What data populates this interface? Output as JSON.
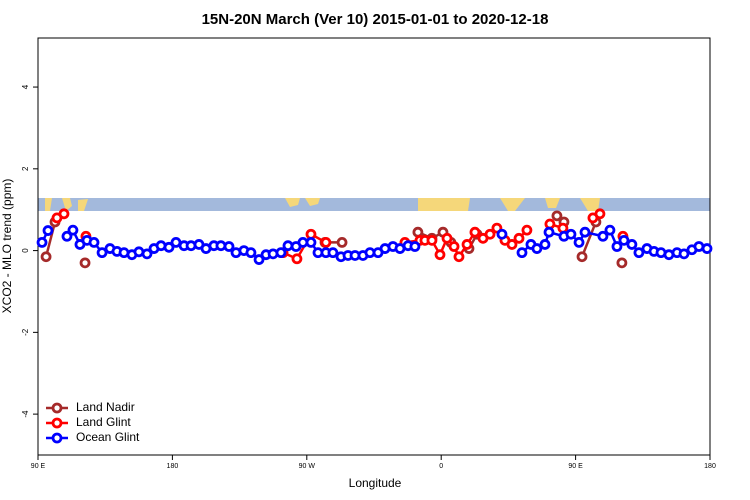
{
  "chart_data": {
    "type": "line",
    "title": "15N-20N March (Ver 10)   2015-01-01 to 2020-12-18",
    "x_label": "Longitude",
    "y_label": "XCO2 - MLO trend (ppm)",
    "xlim": [
      90,
      540
    ],
    "xticks": [
      {
        "value": 90,
        "label": "90 E"
      },
      180,
      {
        "value": 270,
        "label": "90 W"
      },
      {
        "value": 360,
        "label": "0"
      },
      {
        "value": 450,
        "label": "90 E"
      },
      {
        "value": 540,
        "label": "180"
      }
    ],
    "ylim": [
      -5,
      5.2
    ],
    "yticks": [
      -4,
      -2,
      0,
      2,
      4
    ],
    "legend": "bottom-left",
    "series": [
      {
        "name": "Land Nadir",
        "color": "#a52a2a",
        "x": [
          95.4,
          101.4,
          121.5,
          282.2,
          293.6,
          344.4,
          353.8,
          361.2,
          366.5,
          378.6,
          384,
          437.5,
          442.2,
          454.3,
          463.6,
          481
        ],
        "values": [
          -0.15,
          0.7,
          -0.3,
          0.2,
          0.2,
          0.45,
          0.3,
          0.45,
          0.2,
          0.05,
          0.4,
          0.85,
          0.7,
          -0.15,
          0.7,
          -0.3
        ]
      },
      {
        "name": "Land Glint",
        "color": "#ff0000",
        "x": [
          102.7,
          107.4,
          122.1,
          254.1,
          263.4,
          272.8,
          282.8,
          335.7,
          345.8,
          349.1,
          353.8,
          359.2,
          363.9,
          368.6,
          371.9,
          377.3,
          382.6,
          388,
          392.7,
          397.3,
          402.7,
          407.4,
          412.1,
          417.4,
          432.8,
          441.5,
          461.6,
          466.3,
          481.7
        ],
        "values": [
          0.8,
          0.9,
          0.35,
          -0.05,
          -0.2,
          0.4,
          0.2,
          0.2,
          0.25,
          0.25,
          0.25,
          -0.1,
          0.3,
          0.1,
          -0.15,
          0.15,
          0.45,
          0.3,
          0.4,
          0.55,
          0.25,
          0.15,
          0.3,
          0.5,
          0.65,
          0.55,
          0.8,
          0.9,
          0.35
        ]
      },
      {
        "name": "Ocean Glint",
        "color": "#0000ff",
        "x": [
          92.7,
          96.7,
          109.4,
          113.4,
          118.1,
          122.8,
          127.5,
          132.9,
          138.2,
          142.9,
          147.6,
          152.9,
          157.6,
          163,
          167.7,
          172.4,
          177.7,
          182.4,
          187.8,
          192.5,
          197.8,
          202.5,
          207.8,
          212.5,
          217.9,
          222.6,
          227.9,
          232.6,
          238,
          242.7,
          247.4,
          252.7,
          257.4,
          262.8,
          267.4,
          272.8,
          277.5,
          282.8,
          287.5,
          292.9,
          297.6,
          302.3,
          307.6,
          312.3,
          317.7,
          322.4,
          327.7,
          332.4,
          337.8,
          342.4,
          400.7,
          414.1,
          420.1,
          424.1,
          429.5,
          432.2,
          442.2,
          446.9,
          452.3,
          456.3,
          468.3,
          473,
          477.7,
          482.4,
          487.7,
          492.4,
          497.8,
          502.5,
          507.2,
          512.5,
          517.9,
          522.6,
          527.9,
          532.6,
          538
        ],
        "values": [
          0.2,
          0.49,
          0.35,
          0.5,
          0.15,
          0.25,
          0.2,
          -0.05,
          0.05,
          -0.02,
          -0.05,
          -0.1,
          -0.03,
          -0.08,
          0.05,
          0.12,
          0.08,
          0.2,
          0.12,
          0.12,
          0.15,
          0.05,
          0.12,
          0.12,
          0.1,
          -0.05,
          0,
          -0.05,
          -0.22,
          -0.1,
          -0.08,
          -0.05,
          0.12,
          0.1,
          0.2,
          0.2,
          -0.05,
          -0.05,
          -0.05,
          -0.15,
          -0.12,
          -0.12,
          -0.12,
          -0.05,
          -0.05,
          0.05,
          0.1,
          0.05,
          0.12,
          0.1,
          0.4,
          -0.05,
          0.15,
          0.05,
          0.15,
          0.45,
          0.35,
          0.4,
          0.2,
          0.45,
          0.35,
          0.5,
          0.1,
          0.25,
          0.15,
          -0.05,
          0.05,
          -0.02,
          -0.05,
          -0.1,
          -0.05,
          -0.08,
          0.02,
          0.1,
          0.05
        ]
      }
    ]
  }
}
